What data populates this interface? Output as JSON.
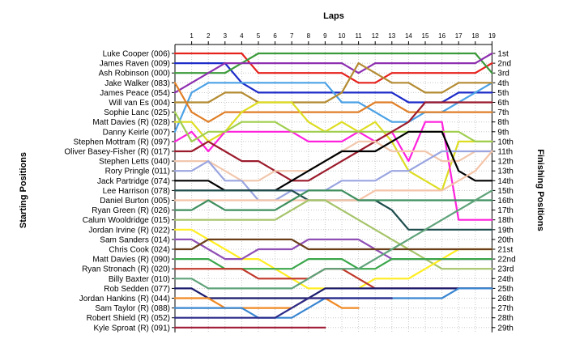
{
  "chart_data": {
    "type": "line",
    "title": "",
    "xlabel": "Laps",
    "ylabel_left": "Starting Positions",
    "ylabel_right": "Finishing Positions",
    "laps": [
      "1",
      "2",
      "3",
      "4",
      "5",
      "6",
      "7",
      "8",
      "9",
      "10",
      "11",
      "12",
      "13",
      "14",
      "15",
      "16",
      "17",
      "18",
      "19"
    ],
    "starting_grid": [
      "Luke Cooper (006)",
      "James Raven (009)",
      "Ash Robinson (000)",
      "Jake Walker (083)",
      "James Peace (054)",
      "Will van Es (004)",
      "Sophie Lanc (025)",
      "Matt Davies   (R) (028)",
      "Danny Keirle (007)",
      "Stephen Mottram (R) (097)",
      "Oliver Basey-Fisher (R) (017)",
      "Stephen Letts (040)",
      "Rory Pringle (011)",
      "Jack Partridge (074)",
      "Lee Harrison (078)",
      "Daniel Burton (005)",
      "Ryan Green (R) (026)",
      "Calum Wooldridge (015)",
      "Jordan Irvine (R) (022)",
      "Sam Sanders (014)",
      "Chris Cook (024)",
      "Matt Davies (R) (090)",
      "Ryan Stronach (R) (020)",
      "Billy Baxter (010)",
      "Rob Sedden (077)",
      "Jordan Hankins (R) (044)",
      "Sam Taylor (R) (088)",
      "Robert Shield (R) (052)",
      "Kyle Sproat (R) (091)"
    ],
    "finishing_positions": [
      "1st",
      "2nd",
      "3rd",
      "4th",
      "5th",
      "6th",
      "7th",
      "8th",
      "9th",
      "10th",
      "11th",
      "12th",
      "13th",
      "14th",
      "15th",
      "16th",
      "17th",
      "18th",
      "19th",
      "20th",
      "21st",
      "22nd",
      "23rd",
      "24th",
      "25th",
      "26th",
      "27th",
      "28th",
      "29th"
    ],
    "series": [
      {
        "color": "#e6221d",
        "start": 1,
        "positions": [
          1,
          1,
          1,
          1,
          3,
          3,
          3,
          3,
          3,
          3,
          4,
          4,
          3,
          3,
          3,
          3,
          3,
          3,
          2
        ]
      },
      {
        "color": "#1d2bc9",
        "start": 2,
        "positions": [
          2,
          2,
          2,
          4,
          5,
          5,
          5,
          5,
          5,
          5,
          5,
          5,
          5,
          6,
          6,
          6,
          5,
          5,
          5
        ]
      },
      {
        "color": "#3b9a3a",
        "start": 3,
        "positions": [
          3,
          3,
          3,
          2,
          1,
          1,
          1,
          1,
          1,
          1,
          1,
          1,
          1,
          1,
          1,
          1,
          1,
          1,
          3
        ]
      },
      {
        "color": "#8e2fb0",
        "start": 5,
        "positions": [
          4,
          3,
          2,
          2,
          2,
          2,
          2,
          2,
          2,
          2,
          3,
          2,
          2,
          2,
          2,
          2,
          2,
          2,
          1
        ]
      },
      {
        "color": "#4ba1e6",
        "start": 9,
        "positions": [
          5,
          4,
          4,
          4,
          4,
          4,
          4,
          4,
          4,
          6,
          6,
          7,
          8,
          8,
          7,
          7,
          6,
          5,
          4
        ]
      },
      {
        "color": "#b48b32",
        "start": 6,
        "positions": [
          6,
          6,
          5,
          5,
          6,
          6,
          6,
          6,
          6,
          5,
          2,
          3,
          4,
          4,
          5,
          5,
          4,
          4,
          4
        ]
      },
      {
        "color": "#e07f27",
        "start": 4,
        "positions": [
          7,
          8,
          7,
          7,
          7,
          7,
          7,
          7,
          7,
          7,
          7,
          6,
          6,
          7,
          7,
          7,
          7,
          7,
          7
        ]
      },
      {
        "color": "#dddd22",
        "start": 8,
        "positions": [
          8,
          10,
          9,
          7,
          6,
          6,
          6,
          8,
          9,
          8,
          9,
          8,
          10,
          13,
          14,
          15,
          10,
          10,
          10
        ]
      },
      {
        "color": "#ff22dd",
        "start": 10,
        "positions": [
          9,
          11,
          9,
          9,
          9,
          9,
          9,
          10,
          10,
          10,
          9,
          10,
          9,
          12,
          8,
          8,
          18,
          18,
          18
        ]
      },
      {
        "color": "#a0ce4f",
        "start": 7,
        "positions": [
          10,
          9,
          9,
          8,
          8,
          8,
          9,
          9,
          9,
          9,
          9,
          9,
          9,
          9,
          9,
          9,
          9,
          10,
          10
        ]
      },
      {
        "color": "#9b1b2c",
        "start": 11,
        "positions": [
          11,
          10,
          11,
          12,
          12,
          13,
          14,
          14,
          13,
          12,
          11,
          10,
          9,
          8,
          6,
          6,
          6,
          6,
          6
        ]
      },
      {
        "color": "#f1c7ad",
        "start": 12,
        "positions": [
          12,
          12,
          13,
          14,
          14,
          13,
          13,
          13,
          12,
          11,
          10,
          10,
          11,
          11,
          11,
          12,
          12,
          11,
          11
        ]
      },
      {
        "color": "#9aa5e0",
        "start": 13,
        "positions": [
          13,
          12,
          14,
          14,
          16,
          16,
          15,
          15,
          15,
          14,
          14,
          14,
          13,
          13,
          12,
          11,
          11,
          11,
          11
        ]
      },
      {
        "color": "#000000",
        "start": 14,
        "positions": [
          14,
          14,
          15,
          15,
          15,
          15,
          14,
          13,
          12,
          11,
          11,
          11,
          10,
          9,
          9,
          9,
          13,
          14,
          14
        ]
      },
      {
        "color": "#1f4d4d",
        "start": 15,
        "positions": [
          15,
          15,
          15,
          15,
          15,
          15,
          15,
          16,
          16,
          16,
          16,
          16,
          17,
          19,
          19,
          19,
          19,
          19,
          19
        ]
      },
      {
        "color": "#f4c4a8",
        "start": 16,
        "positions": [
          16,
          16,
          16,
          16,
          16,
          16,
          16,
          16,
          16,
          16,
          16,
          15,
          15,
          15,
          15,
          15,
          14,
          13,
          11
        ]
      },
      {
        "color": "#3f8f5f",
        "start": 17,
        "positions": [
          17,
          16,
          17,
          17,
          17,
          17,
          16,
          15,
          15,
          15,
          16,
          16,
          16,
          16,
          16,
          16,
          16,
          16,
          16
        ]
      },
      {
        "color": "#a6c46a",
        "start": 18,
        "positions": [
          18,
          18,
          18,
          18,
          18,
          18,
          17,
          16,
          16,
          17,
          18,
          19,
          20,
          21,
          22,
          23,
          23,
          23,
          23
        ]
      },
      {
        "color": "#ffee22",
        "start": 19,
        "positions": [
          19,
          20,
          21,
          22,
          22,
          23,
          24,
          25,
          25,
          25,
          25,
          24,
          24,
          24,
          23,
          22,
          21,
          21,
          21
        ]
      },
      {
        "color": "#8f4fb5",
        "start": 20,
        "positions": [
          20,
          21,
          22,
          22,
          21,
          21,
          21,
          20,
          20,
          20,
          20,
          21,
          22,
          22,
          22,
          22,
          22,
          22,
          22
        ]
      },
      {
        "color": "#6b3f1a",
        "start": 21,
        "positions": [
          21,
          20,
          20,
          20,
          20,
          20,
          20,
          21,
          21,
          21,
          21,
          21,
          21,
          21,
          21,
          21,
          21,
          21,
          21
        ]
      },
      {
        "color": "#3aa64a",
        "start": 22,
        "positions": [
          22,
          22,
          23,
          23,
          23,
          23,
          23,
          22,
          22,
          22,
          23,
          23,
          22,
          22,
          22,
          22,
          22,
          22,
          22
        ]
      },
      {
        "color": "#c0392b",
        "start": 23,
        "positions": [
          23,
          23,
          23,
          23,
          24,
          24,
          24,
          24,
          23,
          23,
          24,
          25,
          25,
          25,
          25,
          25,
          25,
          25,
          25
        ]
      },
      {
        "color": "#5fa37a",
        "start": 24,
        "positions": [
          24,
          25,
          25,
          25,
          25,
          25,
          25,
          24,
          23,
          23,
          23,
          22,
          21,
          20,
          19,
          18,
          17,
          16,
          15
        ]
      },
      {
        "color": "#1b1b6e",
        "start": 25,
        "positions": [
          25,
          26,
          26,
          26,
          26,
          26,
          26,
          26,
          25,
          25,
          25,
          25,
          25,
          25,
          25,
          25,
          25,
          25,
          25
        ]
      },
      {
        "color": "#f08a24",
        "start": 26,
        "positions": [
          26,
          26,
          27,
          27,
          27,
          27,
          27,
          26,
          26,
          27,
          27
        ]
      },
      {
        "color": "#3a86d1",
        "start": 27,
        "positions": [
          27,
          27,
          27,
          27,
          28,
          28,
          28,
          27,
          26,
          26,
          26,
          26,
          26,
          26,
          26,
          26,
          25,
          25,
          25
        ]
      },
      {
        "color": "#2a2a8a",
        "start": 28,
        "positions": [
          28,
          28,
          28,
          28,
          28,
          28,
          27,
          26,
          26,
          26,
          26,
          26,
          26
        ]
      },
      {
        "color": "#a01b34",
        "start": 29,
        "positions": [
          29,
          29,
          29,
          29,
          29,
          29,
          29,
          29,
          29
        ]
      }
    ]
  }
}
